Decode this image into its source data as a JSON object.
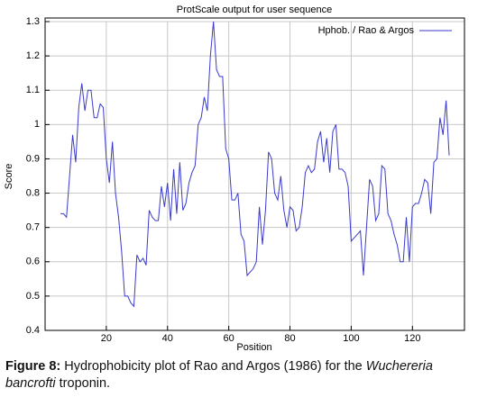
{
  "chart_data": {
    "type": "line",
    "title": "ProtScale output for user sequence",
    "x_label": "Position",
    "y_label": "Score",
    "x": [
      5,
      6,
      7,
      8,
      9,
      10,
      11,
      12,
      13,
      14,
      15,
      16,
      17,
      18,
      19,
      20,
      21,
      22,
      23,
      24,
      25,
      26,
      27,
      28,
      29,
      30,
      31,
      32,
      33,
      34,
      35,
      36,
      37,
      38,
      39,
      40,
      41,
      42,
      43,
      44,
      45,
      46,
      47,
      48,
      49,
      50,
      51,
      52,
      53,
      54,
      55,
      56,
      57,
      58,
      59,
      60,
      61,
      62,
      63,
      64,
      65,
      66,
      67,
      68,
      69,
      70,
      71,
      72,
      73,
      74,
      75,
      76,
      77,
      78,
      79,
      80,
      81,
      82,
      83,
      84,
      85,
      86,
      87,
      88,
      89,
      90,
      91,
      92,
      93,
      94,
      95,
      96,
      97,
      98,
      99,
      100,
      101,
      102,
      103,
      104,
      105,
      106,
      107,
      108,
      109,
      110,
      111,
      112,
      113,
      114,
      115,
      116,
      117,
      118,
      119,
      120,
      121,
      122,
      123,
      124,
      125,
      126,
      127,
      128,
      129,
      130,
      131,
      132
    ],
    "series": [
      {
        "name": "Hphob. /  Rao  & Argos",
        "color": "#3a3acc",
        "values": [
          0.74,
          0.74,
          0.73,
          0.85,
          0.97,
          0.89,
          1.05,
          1.12,
          1.04,
          1.1,
          1.1,
          1.02,
          1.02,
          1.06,
          1.05,
          0.9,
          0.83,
          0.95,
          0.8,
          0.73,
          0.63,
          0.5,
          0.5,
          0.48,
          0.47,
          0.62,
          0.6,
          0.61,
          0.59,
          0.75,
          0.73,
          0.72,
          0.72,
          0.82,
          0.76,
          0.83,
          0.72,
          0.87,
          0.74,
          0.89,
          0.75,
          0.77,
          0.83,
          0.86,
          0.88,
          1.0,
          1.02,
          1.08,
          1.04,
          1.2,
          1.3,
          1.16,
          1.14,
          1.14,
          0.93,
          0.9,
          0.78,
          0.78,
          0.8,
          0.68,
          0.66,
          0.56,
          0.57,
          0.58,
          0.6,
          0.76,
          0.65,
          0.75,
          0.92,
          0.9,
          0.8,
          0.78,
          0.85,
          0.75,
          0.7,
          0.76,
          0.75,
          0.69,
          0.7,
          0.76,
          0.86,
          0.88,
          0.86,
          0.87,
          0.95,
          0.98,
          0.89,
          0.96,
          0.86,
          0.98,
          1.0,
          0.87,
          0.87,
          0.86,
          0.82,
          0.66,
          0.67,
          0.68,
          0.69,
          0.56,
          0.7,
          0.84,
          0.82,
          0.72,
          0.74,
          0.88,
          0.87,
          0.74,
          0.72,
          0.68,
          0.65,
          0.6,
          0.6,
          0.73,
          0.6,
          0.76,
          0.77,
          0.77,
          0.8,
          0.84,
          0.83,
          0.74,
          0.89,
          0.9,
          1.02,
          0.97,
          1.07,
          0.91
        ]
      }
    ],
    "xlim": [
      0,
      137
    ],
    "ylim": [
      0.4,
      1.3
    ],
    "xticks": [
      20,
      40,
      60,
      80,
      100,
      120
    ],
    "yticks": [
      0.4,
      0.5,
      0.6,
      0.7,
      0.8,
      0.9,
      1,
      1.1,
      1.2,
      1.3
    ],
    "grid": true,
    "legend": "upper right"
  },
  "caption": {
    "label": "Figure 8:",
    "text_before": "Hydrophobicity plot of Rao and Argos (1986) for the ",
    "italic": "Wuchereria bancrofti",
    "text_after": " troponin."
  }
}
